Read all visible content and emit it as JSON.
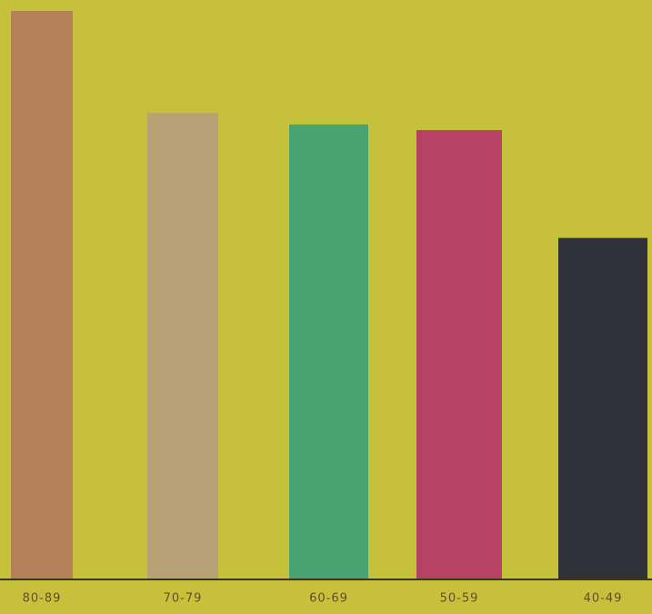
{
  "chart_data": {
    "type": "bar",
    "categories": [
      "80-89",
      "70-79",
      "60-69",
      "50-59",
      "40-49"
    ],
    "values": [
      10,
      8.2,
      8,
      7.9,
      6
    ],
    "colors": [
      "#b27a5c",
      "#b59d7c",
      "#3a9e78",
      "#b5336a",
      "#1f2038"
    ]
  }
}
